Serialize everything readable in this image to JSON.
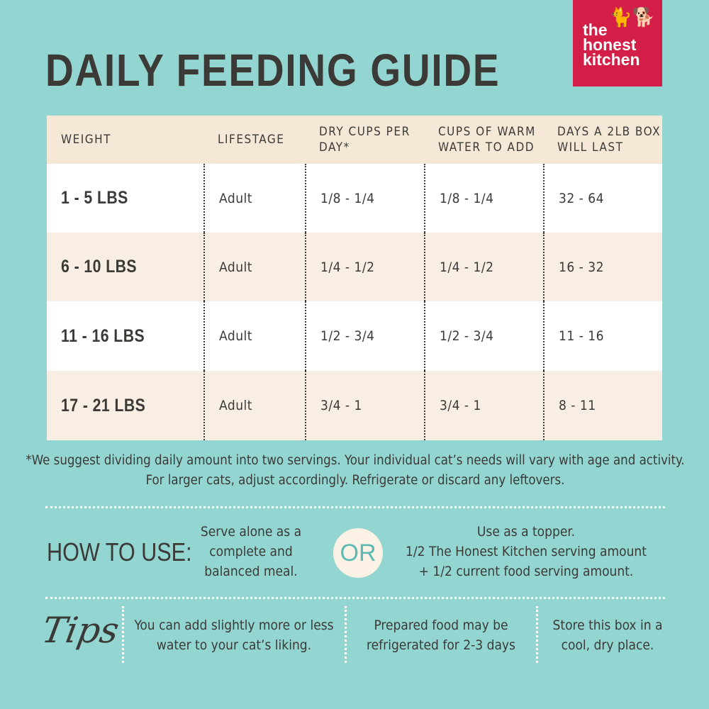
{
  "title": "DAILY FEEDING GUIDE",
  "logo": {
    "line1": "the",
    "line2": "honest",
    "line3": "kitchen",
    "icon": "cat-and-dog-silhouette-icon",
    "color": "#d31f47"
  },
  "table": {
    "headers": [
      "WEIGHT",
      "LIFESTAGE",
      "DRY CUPS PER DAY*",
      "CUPS OF WARM WATER TO ADD",
      "DAYS A 2LB BOX WILL LAST"
    ],
    "rows": [
      [
        "1 - 5 LBS",
        "Adult",
        "1/8 - 1/4",
        "1/8 - 1/4",
        "32 - 64"
      ],
      [
        "6 - 10 LBS",
        "Adult",
        "1/4 - 1/2",
        "1/4 - 1/2",
        "16 - 32"
      ],
      [
        "11 - 16 LBS",
        "Adult",
        "1/2 - 3/4",
        "1/2 - 3/4",
        "11 - 16"
      ],
      [
        "17 - 21 LBS",
        "Adult",
        "3/4 - 1",
        "3/4 - 1",
        "8 - 11"
      ]
    ]
  },
  "note": "*We suggest dividing daily amount into two servings. Your individual cat’s needs will vary with age and activity. For larger cats, adjust accordingly. Refrigerate or discard any leftovers.",
  "how_to_use": {
    "label": "HOW TO USE:",
    "option1": "Serve alone as a complete and balanced meal.",
    "or": "OR",
    "option2_title": "Use as a topper.",
    "option2_line1": "1/2 The Honest Kitchen serving amount",
    "option2_line2": "+ 1/2 current food serving amount."
  },
  "tips": {
    "label": "Tips",
    "items": [
      "You can add slightly more or less water to your cat’s liking.",
      "Prepared food may be refrigerated for 2-3 days",
      "Store this box in a cool, dry place."
    ]
  },
  "colors": {
    "background": "#93d5d1",
    "header": "#f6e8d6",
    "row_alt": "#f8eee4",
    "text": "#3b3a37"
  }
}
